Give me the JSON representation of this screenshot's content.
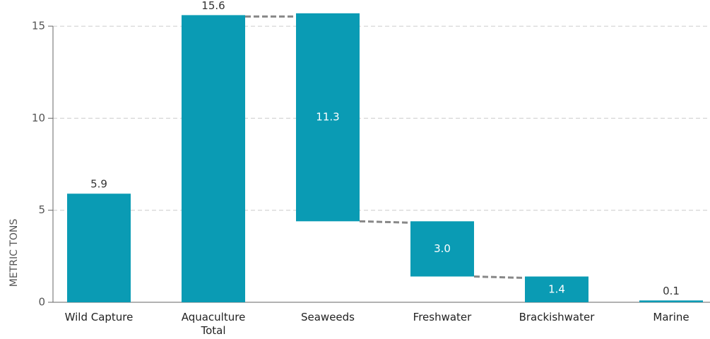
{
  "chart_data": {
    "type": "waterfall",
    "y_label": "METRIC TONS",
    "categories": [
      "Wild Capture",
      "Aquaculture Total",
      "Seaweeds",
      "Freshwater",
      "Brackishwater",
      "Marine"
    ],
    "values": [
      5.9,
      15.6,
      11.3,
      3.0,
      1.4,
      0.1
    ],
    "value_labels": [
      "5.9",
      "15.6",
      "11.3",
      "3.0",
      "1.4",
      "0.1"
    ],
    "color": "#0a9bb4",
    "connector_color": "#888888",
    "ylim": [
      0,
      16
    ],
    "yticks": [
      0,
      5,
      10,
      15
    ],
    "grid": true
  }
}
